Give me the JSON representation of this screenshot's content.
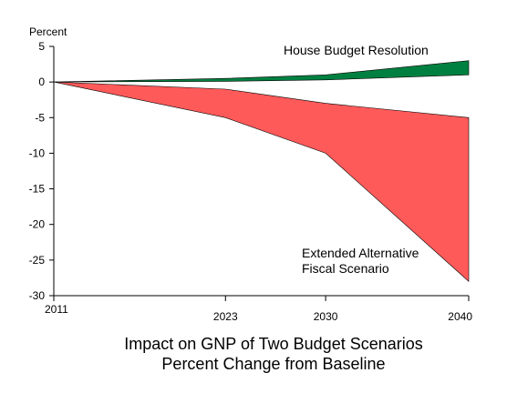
{
  "chart_data": {
    "type": "area",
    "title": [
      "Impact on GNP of  Two Budget Scenarios",
      "Percent Change from Baseline"
    ],
    "ylabel": "Percent",
    "xlabel": "",
    "x": [
      2011,
      2023,
      2030,
      2040
    ],
    "x_tick_labels": [
      "2011",
      "2023",
      "2030",
      "2040"
    ],
    "ylim": [
      -30,
      5
    ],
    "y_ticks": [
      5,
      0,
      -5,
      -10,
      -15,
      -20,
      -25,
      -30
    ],
    "grid": false,
    "legend": "none",
    "series": [
      {
        "name": "House Budget Resolution",
        "color": "#008040",
        "upper": [
          0,
          0.5,
          1,
          3
        ],
        "lower": [
          0,
          0.1,
          0.3,
          1
        ]
      },
      {
        "name": "Extended Alternative Fiscal Scenario",
        "label_lines": [
          "Extended Alternative",
          "Fiscal Scenario"
        ],
        "color": "#ff5a5a",
        "upper": [
          0,
          -1,
          -3,
          -5
        ],
        "lower": [
          0,
          -5,
          -10,
          -28
        ]
      }
    ]
  }
}
